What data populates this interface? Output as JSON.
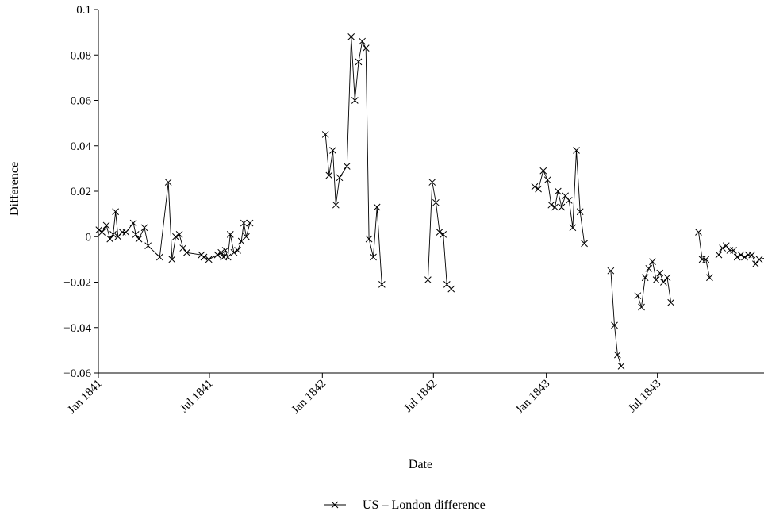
{
  "chart_data": {
    "type": "line",
    "title": "",
    "xlabel": "Date",
    "ylabel": "Difference",
    "ylim": [
      -0.06,
      0.1
    ],
    "xlim": [
      "1841-01-01",
      "1843-12-31"
    ],
    "yticks": [
      {
        "value": 0.1,
        "label": "0.1"
      },
      {
        "value": 0.08,
        "label": "0.08"
      },
      {
        "value": 0.06,
        "label": "0.06"
      },
      {
        "value": 0.04,
        "label": "0.04"
      },
      {
        "value": 0.02,
        "label": "0.02"
      },
      {
        "value": 0,
        "label": "0"
      },
      {
        "value": -0.02,
        "label": "−0.02"
      },
      {
        "value": -0.04,
        "label": "−0.04"
      },
      {
        "value": -0.06,
        "label": "−0.06"
      }
    ],
    "xticks": [
      {
        "date": "1841-01-01",
        "label": "Jan 1841"
      },
      {
        "date": "1841-07-01",
        "label": "Jul 1841"
      },
      {
        "date": "1842-01-01",
        "label": "Jan 1842"
      },
      {
        "date": "1842-07-01",
        "label": "Jul 1842"
      },
      {
        "date": "1843-01-01",
        "label": "Jan 1843"
      },
      {
        "date": "1843-07-01",
        "label": "Jul 1843"
      }
    ],
    "grid": false,
    "legend_position": "bottom-center",
    "marker": "x",
    "color": "#000000",
    "series": [
      {
        "name": "US – London difference",
        "segments": [
          [
            [
              "1841-01-02",
              0.003
            ],
            [
              "1841-01-07",
              0.002
            ],
            [
              "1841-01-14",
              0.005
            ],
            [
              "1841-01-20",
              -0.001
            ],
            [
              "1841-01-25",
              0.001
            ],
            [
              "1841-01-29",
              0.011
            ],
            [
              "1841-02-02",
              0.0
            ],
            [
              "1841-02-09",
              0.002
            ],
            [
              "1841-02-15",
              0.002
            ],
            [
              "1841-02-27",
              0.006
            ],
            [
              "1841-03-03",
              0.001
            ],
            [
              "1841-03-08",
              -0.001
            ],
            [
              "1841-03-17",
              0.004
            ],
            [
              "1841-03-23",
              -0.004
            ],
            [
              "1841-04-11",
              -0.009
            ],
            [
              "1841-04-25",
              0.024
            ],
            [
              "1841-05-01",
              -0.01
            ],
            [
              "1841-05-07",
              0.0
            ],
            [
              "1841-05-13",
              0.001
            ],
            [
              "1841-05-19",
              -0.005
            ],
            [
              "1841-05-25",
              -0.007
            ],
            [
              "1841-06-18",
              -0.008
            ],
            [
              "1841-06-22",
              -0.009
            ],
            [
              "1841-06-30",
              -0.01
            ],
            [
              "1841-07-14",
              -0.008
            ],
            [
              "1841-07-20",
              -0.007
            ],
            [
              "1841-07-24",
              -0.009
            ],
            [
              "1841-07-27",
              -0.006
            ],
            [
              "1841-07-31",
              -0.009
            ],
            [
              "1841-08-04",
              0.001
            ],
            [
              "1841-08-10",
              -0.007
            ],
            [
              "1841-08-16",
              -0.006
            ],
            [
              "1841-08-22",
              -0.002
            ],
            [
              "1841-08-26",
              0.006
            ],
            [
              "1841-08-30",
              0.0
            ],
            [
              "1841-09-05",
              0.006
            ]
          ],
          [
            [
              "1842-01-06",
              0.045
            ],
            [
              "1842-01-12",
              0.027
            ],
            [
              "1842-01-18",
              0.038
            ],
            [
              "1842-01-23",
              0.014
            ],
            [
              "1842-01-29",
              0.026
            ],
            [
              "1842-02-10",
              0.031
            ],
            [
              "1842-02-17",
              0.088
            ],
            [
              "1842-02-23",
              0.06
            ],
            [
              "1842-03-01",
              0.077
            ],
            [
              "1842-03-07",
              0.086
            ],
            [
              "1842-03-13",
              0.083
            ],
            [
              "1842-03-18",
              -0.001
            ],
            [
              "1842-03-25",
              -0.009
            ],
            [
              "1842-03-31",
              0.013
            ],
            [
              "1842-04-08",
              -0.021
            ]
          ],
          [
            [
              "1842-06-22",
              -0.019
            ],
            [
              "1842-06-29",
              0.024
            ],
            [
              "1842-07-05",
              0.015
            ],
            [
              "1842-07-11",
              0.002
            ],
            [
              "1842-07-17",
              0.001
            ],
            [
              "1842-07-23",
              -0.021
            ],
            [
              "1842-07-30",
              -0.023
            ]
          ],
          [
            [
              "1842-12-13",
              0.022
            ],
            [
              "1842-12-19",
              0.021
            ],
            [
              "1842-12-27",
              0.029
            ],
            [
              "1843-01-03",
              0.025
            ],
            [
              "1843-01-09",
              0.014
            ],
            [
              "1843-01-15",
              0.013
            ],
            [
              "1843-01-20",
              0.02
            ],
            [
              "1843-01-26",
              0.013
            ],
            [
              "1843-02-01",
              0.018
            ],
            [
              "1843-02-07",
              0.016
            ],
            [
              "1843-02-13",
              0.004
            ],
            [
              "1843-02-19",
              0.038
            ],
            [
              "1843-02-25",
              0.011
            ],
            [
              "1843-03-04",
              -0.003
            ]
          ],
          [
            [
              "1843-04-16",
              -0.015
            ],
            [
              "1843-04-22",
              -0.039
            ],
            [
              "1843-04-27",
              -0.052
            ],
            [
              "1843-05-03",
              -0.057
            ]
          ],
          [
            [
              "1843-05-30",
              -0.026
            ],
            [
              "1843-06-05",
              -0.031
            ],
            [
              "1843-06-11",
              -0.018
            ],
            [
              "1843-06-17",
              -0.014
            ],
            [
              "1843-06-23",
              -0.011
            ],
            [
              "1843-06-29",
              -0.019
            ],
            [
              "1843-07-05",
              -0.016
            ],
            [
              "1843-07-11",
              -0.02
            ],
            [
              "1843-07-17",
              -0.018
            ],
            [
              "1843-07-23",
              -0.029
            ]
          ],
          [
            [
              "1843-09-06",
              0.002
            ],
            [
              "1843-09-12",
              -0.01
            ],
            [
              "1843-09-18",
              -0.01
            ],
            [
              "1843-09-24",
              -0.018
            ]
          ],
          [
            [
              "1843-10-09",
              -0.008
            ],
            [
              "1843-10-15",
              -0.005
            ],
            [
              "1843-10-21",
              -0.004
            ],
            [
              "1843-10-27",
              -0.006
            ],
            [
              "1843-11-02",
              -0.006
            ],
            [
              "1843-11-08",
              -0.009
            ],
            [
              "1843-11-14",
              -0.008
            ],
            [
              "1843-11-20",
              -0.009
            ],
            [
              "1843-11-26",
              -0.008
            ],
            [
              "1843-12-02",
              -0.008
            ],
            [
              "1843-12-08",
              -0.012
            ],
            [
              "1843-12-14",
              -0.01
            ],
            [
              "1843-12-28",
              -0.009
            ]
          ]
        ]
      }
    ]
  }
}
